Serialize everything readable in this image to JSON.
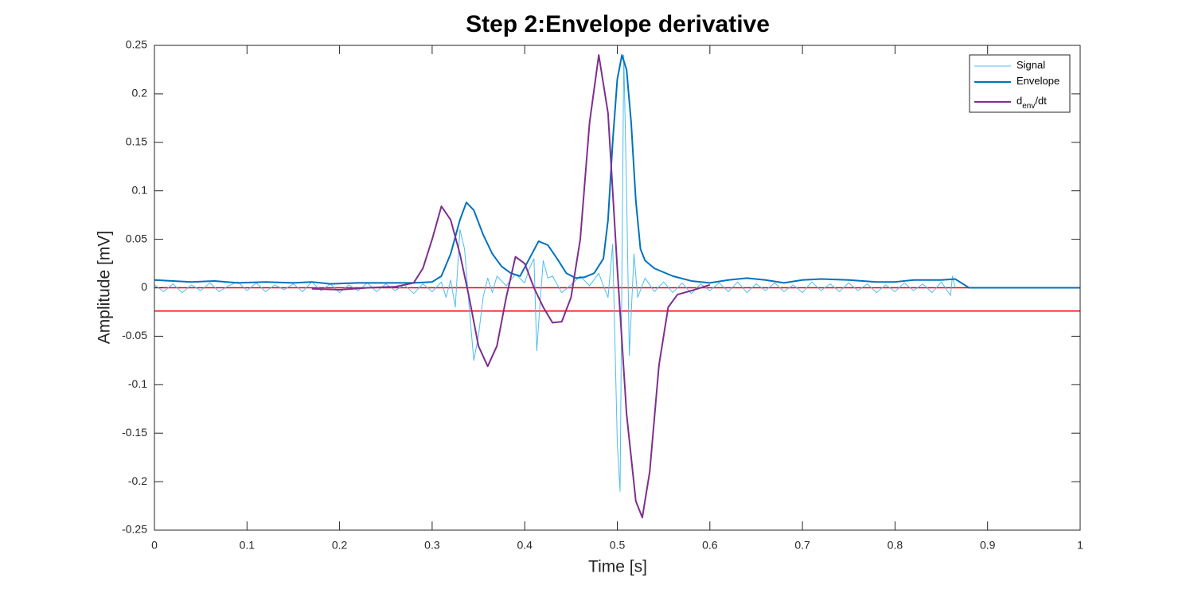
{
  "chart_data": {
    "type": "line",
    "title": "Step 2:Envelope derivative",
    "xlabel": "Time [s]",
    "ylabel": "Amplitude [mV]",
    "xlim": [
      0,
      1
    ],
    "ylim": [
      -0.25,
      0.25
    ],
    "xticks": [
      0,
      0.1,
      0.2,
      0.3,
      0.4,
      0.5,
      0.6,
      0.7,
      0.8,
      0.9,
      1
    ],
    "yticks": [
      -0.25,
      -0.2,
      -0.15,
      -0.1,
      -0.05,
      0,
      0.05,
      0.1,
      0.15,
      0.2,
      0.25
    ],
    "legend": "top-right",
    "reference_lines": {
      "color": "#ff0000",
      "values": [
        0,
        -0.024
      ]
    },
    "series": [
      {
        "name": [
          "Signal"
        ],
        "color": "#4dbeee",
        "width": 1,
        "x": [
          0,
          0.01,
          0.02,
          0.03,
          0.04,
          0.05,
          0.06,
          0.07,
          0.08,
          0.09,
          0.1,
          0.11,
          0.12,
          0.13,
          0.14,
          0.15,
          0.16,
          0.17,
          0.18,
          0.19,
          0.2,
          0.21,
          0.22,
          0.23,
          0.24,
          0.25,
          0.26,
          0.27,
          0.28,
          0.29,
          0.3,
          0.31,
          0.315,
          0.32,
          0.325,
          0.33,
          0.335,
          0.34,
          0.345,
          0.35,
          0.355,
          0.36,
          0.365,
          0.37,
          0.38,
          0.39,
          0.4,
          0.405,
          0.41,
          0.413,
          0.417,
          0.42,
          0.425,
          0.43,
          0.44,
          0.45,
          0.46,
          0.47,
          0.48,
          0.485,
          0.49,
          0.495,
          0.5,
          0.503,
          0.507,
          0.51,
          0.513,
          0.518,
          0.522,
          0.53,
          0.54,
          0.55,
          0.56,
          0.57,
          0.58,
          0.59,
          0.6,
          0.61,
          0.62,
          0.63,
          0.64,
          0.65,
          0.66,
          0.67,
          0.68,
          0.69,
          0.7,
          0.71,
          0.72,
          0.73,
          0.74,
          0.75,
          0.76,
          0.77,
          0.78,
          0.79,
          0.8,
          0.81,
          0.82,
          0.83,
          0.84,
          0.85,
          0.86,
          0.862,
          0.865
        ],
        "values": [
          0.003,
          -0.004,
          0.004,
          -0.005,
          0.003,
          -0.003,
          0.005,
          -0.004,
          0.002,
          0.006,
          -0.003,
          0.005,
          -0.004,
          0.003,
          -0.002,
          0.004,
          -0.004,
          0.006,
          -0.003,
          0.004,
          -0.005,
          0.003,
          -0.003,
          0.005,
          -0.004,
          0.004,
          -0.003,
          0.003,
          -0.006,
          0.004,
          -0.004,
          0.006,
          -0.01,
          0.008,
          -0.02,
          0.06,
          0.04,
          -0.02,
          -0.075,
          -0.05,
          -0.01,
          0.01,
          -0.005,
          0.012,
          0.002,
          0.014,
          0.005,
          0.02,
          0.03,
          -0.065,
          -0.01,
          0.028,
          0.01,
          0.012,
          -0.005,
          0.003,
          0.012,
          0.002,
          0.015,
          0.002,
          -0.01,
          0.045,
          -0.16,
          -0.21,
          0.24,
          0.1,
          -0.07,
          0.035,
          -0.01,
          0.01,
          -0.004,
          0.006,
          -0.005,
          0.005,
          -0.006,
          0.004,
          -0.003,
          0.005,
          -0.004,
          0.006,
          -0.005,
          0.004,
          -0.003,
          0.005,
          -0.004,
          0.003,
          -0.005,
          0.006,
          -0.003,
          0.004,
          -0.004,
          0.005,
          -0.003,
          0.004,
          -0.005,
          0.003,
          -0.004,
          0.005,
          -0.003,
          0.004,
          -0.005,
          0.006,
          -0.008,
          0.012,
          0
        ]
      },
      {
        "name": [
          "Envelope"
        ],
        "color": "#0072bd",
        "width": 2,
        "x": [
          0,
          0.02,
          0.04,
          0.065,
          0.09,
          0.12,
          0.15,
          0.17,
          0.19,
          0.22,
          0.25,
          0.28,
          0.3,
          0.31,
          0.32,
          0.33,
          0.337,
          0.345,
          0.355,
          0.365,
          0.375,
          0.385,
          0.395,
          0.405,
          0.415,
          0.425,
          0.435,
          0.445,
          0.455,
          0.465,
          0.475,
          0.485,
          0.49,
          0.495,
          0.5,
          0.505,
          0.51,
          0.515,
          0.52,
          0.525,
          0.53,
          0.54,
          0.56,
          0.58,
          0.6,
          0.62,
          0.64,
          0.66,
          0.68,
          0.7,
          0.72,
          0.75,
          0.78,
          0.8,
          0.82,
          0.85,
          0.865,
          0.88,
          0.9,
          1
        ],
        "values": [
          0.008,
          0.007,
          0.006,
          0.007,
          0.005,
          0.006,
          0.005,
          0.006,
          0.004,
          0.005,
          0.005,
          0.005,
          0.006,
          0.012,
          0.035,
          0.07,
          0.088,
          0.08,
          0.055,
          0.035,
          0.022,
          0.015,
          0.012,
          0.03,
          0.048,
          0.044,
          0.03,
          0.015,
          0.01,
          0.011,
          0.015,
          0.03,
          0.07,
          0.15,
          0.215,
          0.24,
          0.225,
          0.17,
          0.09,
          0.04,
          0.028,
          0.02,
          0.012,
          0.007,
          0.005,
          0.008,
          0.01,
          0.008,
          0.005,
          0.008,
          0.009,
          0.008,
          0.006,
          0.006,
          0.008,
          0.008,
          0.009,
          0,
          0,
          0
        ]
      },
      {
        "name": [
          "d",
          "env",
          "/dt"
        ],
        "color": "#7e2f8e",
        "width": 2,
        "x": [
          0.17,
          0.2,
          0.23,
          0.26,
          0.28,
          0.29,
          0.3,
          0.31,
          0.32,
          0.33,
          0.34,
          0.35,
          0.36,
          0.37,
          0.38,
          0.39,
          0.4,
          0.41,
          0.42,
          0.43,
          0.44,
          0.45,
          0.46,
          0.47,
          0.48,
          0.49,
          0.5,
          0.51,
          0.52,
          0.527,
          0.535,
          0.545,
          0.555,
          0.565,
          0.58,
          0.6
        ],
        "values": [
          -0.001,
          -0.002,
          0,
          0.001,
          0.005,
          0.02,
          0.05,
          0.084,
          0.07,
          0.035,
          -0.01,
          -0.06,
          -0.081,
          -0.06,
          -0.01,
          0.032,
          0.025,
          0,
          -0.02,
          -0.036,
          -0.035,
          -0.01,
          0.05,
          0.17,
          0.24,
          0.18,
          0.02,
          -0.13,
          -0.22,
          -0.237,
          -0.19,
          -0.08,
          -0.02,
          -0.007,
          -0.003,
          0.003
        ]
      }
    ]
  }
}
